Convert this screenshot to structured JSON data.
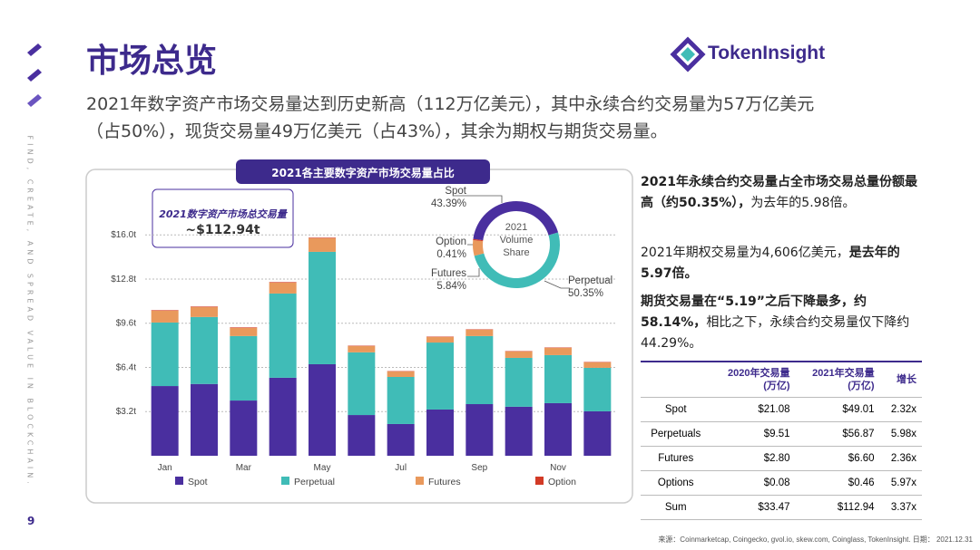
{
  "header": {
    "title": "市场总览",
    "subtitle": "2021年数字资产市场交易量达到历史新高（112万亿美元），其中永续合约交易量为57万亿美元（占50%），现货交易量49万亿美元（占43%），其余为期权与期货交易量。",
    "logo": "TokenInsight",
    "slogan": "FIND, CREATE, AND SPREAD VALUE IN BLOCKCHAIN.",
    "page": "9"
  },
  "chart_data": [
    {
      "type": "stacked-bar",
      "title": "2021各主要数字资产市场交易量占比",
      "annotations": [
        "2021数字资产市场总交易量",
        "~$112.94t"
      ],
      "categories": [
        "Jan",
        null,
        "Mar",
        null,
        "May",
        null,
        "Jul",
        null,
        "Sep",
        null,
        "Nov",
        null
      ],
      "series": [
        {
          "name": "Spot",
          "color": "#4a2f9f",
          "values": [
            5.05,
            5.2,
            4.0,
            5.65,
            6.63,
            2.95,
            2.3,
            3.35,
            3.74,
            3.55,
            3.81,
            3.22
          ]
        },
        {
          "name": "Perpetual",
          "color": "#40bcb7",
          "values": [
            4.6,
            4.85,
            4.67,
            6.1,
            8.14,
            4.54,
            3.41,
            4.85,
            4.93,
            3.54,
            3.48,
            3.15
          ]
        },
        {
          "name": "Futures",
          "color": "#e9995c",
          "values": [
            0.85,
            0.72,
            0.59,
            0.79,
            0.99,
            0.45,
            0.39,
            0.4,
            0.46,
            0.46,
            0.52,
            0.39
          ]
        },
        {
          "name": "Option",
          "color": "#d23a26",
          "values": [
            0.04,
            0.04,
            0.04,
            0.04,
            0.04,
            0.03,
            0.03,
            0.03,
            0.03,
            0.03,
            0.03,
            0.03
          ]
        }
      ],
      "ylim": [
        0,
        16.8
      ],
      "yticks": [
        {
          "value": 3.2,
          "label": "$3.2t"
        },
        {
          "value": 6.4,
          "label": "$6.4t"
        },
        {
          "value": 9.6,
          "label": "$9.6t"
        },
        {
          "value": 12.8,
          "label": "$12.8t"
        },
        {
          "value": 16.0,
          "label": "$16.0t"
        }
      ],
      "grid": true,
      "legend": "bottom"
    },
    {
      "type": "donut",
      "title": "2021 Volume Share",
      "categories": [
        "Spot",
        "Perpetual",
        "Futures",
        "Option"
      ],
      "values": [
        43.39,
        50.35,
        5.84,
        0.41
      ],
      "value_labels": [
        "43.39%",
        "50.35%",
        "5.84%",
        "0.41%"
      ],
      "colors": [
        "#4a2f9f",
        "#40bcb7",
        "#e9995c",
        "#d23a26"
      ]
    }
  ],
  "body": {
    "points": [
      [
        "2021年永续合约交易量占全市场交易总量份额最高（约50.35%），",
        "为去年的5.98倍。"
      ],
      [
        "2021年期权交易量为4,606亿美元，",
        "是去年的5.97倍。"
      ],
      [
        "期货交易量在“5.19”之后下降最多，约58.14%，",
        "相比之下，永续合约交易量仅下降约44.29%。"
      ]
    ]
  },
  "table": {
    "header": [
      "2020年交易量\n(万亿)",
      "2021年交易量\n(万亿)",
      "增长"
    ],
    "rows": [
      [
        "Spot",
        "$21.08",
        "$49.01",
        "2.32x"
      ],
      [
        "Perpetuals",
        "$9.51",
        "$56.87",
        "5.98x"
      ],
      [
        "Futures",
        "$2.80",
        "$6.60",
        "2.36x"
      ],
      [
        "Options",
        "$0.08",
        "$0.46",
        "5.97x"
      ],
      [
        "Sum",
        "$33.47",
        "$112.94",
        "3.37x"
      ]
    ]
  },
  "footer": {
    "source": "来源：Coinmarketcap, Coingecko, gvol.io, skew.com, Coinglass, TokenInsight. 日期： 2021.12.31"
  }
}
